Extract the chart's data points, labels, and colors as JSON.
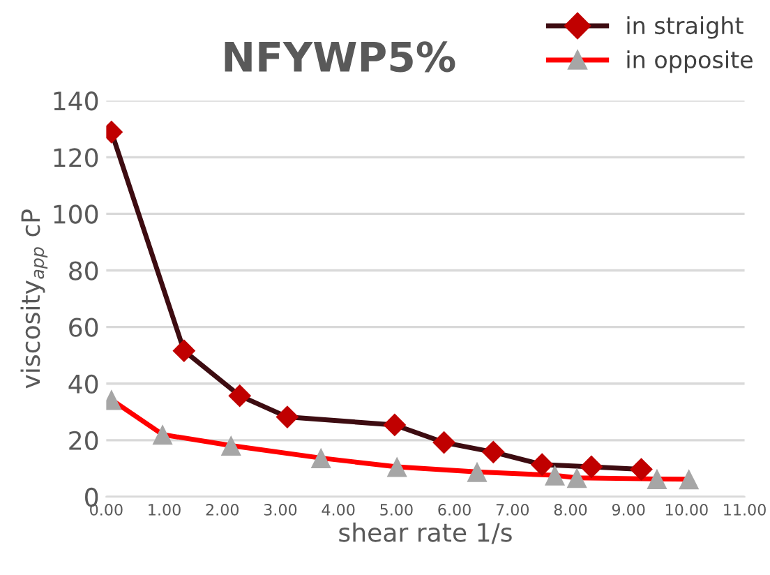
{
  "chart_data": {
    "type": "line",
    "title": "NFYWP5%",
    "xlabel": "shear rate 1/s",
    "ylabel": "viscosity$_{app}$ cP",
    "xlim": [
      0,
      11
    ],
    "xticks": [
      {
        "value": 0,
        "label": "0.00"
      },
      {
        "value": 1,
        "label": "1.00"
      },
      {
        "value": 2,
        "label": "2.00"
      },
      {
        "value": 3,
        "label": "3.00"
      },
      {
        "value": 4,
        "label": "4.00"
      },
      {
        "value": 5,
        "label": "5.00"
      },
      {
        "value": 6,
        "label": "6.00"
      },
      {
        "value": 7,
        "label": "7.00"
      },
      {
        "value": 8,
        "label": "8.00"
      },
      {
        "value": 9,
        "label": "9.00"
      },
      {
        "value": 10,
        "label": "10.00"
      },
      {
        "value": 11,
        "label": "11.00"
      }
    ],
    "ylim": [
      0,
      140
    ],
    "yticks": [
      0,
      20,
      40,
      60,
      80,
      100,
      120,
      140
    ],
    "grid": "y",
    "legend": "top right",
    "series": [
      {
        "name": "in straight",
        "color": "#3d0c11",
        "colors": [
          "#c00000",
          "#c00000",
          "#c00000",
          "#c00000",
          "#c00000",
          "#c00000",
          "#c00000",
          "#c00000",
          "#c00000",
          "#c00000"
        ],
        "marker": "diamond",
        "x": [
          0.09,
          1.34,
          2.3,
          3.12,
          4.97,
          5.82,
          6.67,
          7.51,
          8.36,
          9.22
        ],
        "values": [
          128.9,
          51.6,
          35.7,
          28.2,
          25.4,
          19.2,
          15.8,
          11.4,
          10.6,
          9.7
        ]
      },
      {
        "name": "in opposite",
        "color": "#ff0000",
        "colors": [
          "#a6a6a6",
          "#a6a6a6",
          "#a6a6a6",
          "#a6a6a6",
          "#a6a6a6",
          "#a6a6a6",
          "#a6a6a6",
          "#a6a6a6",
          "#a6a6a6",
          "#a6a6a6"
        ],
        "marker": "triangle",
        "x": [
          0.09,
          0.97,
          2.15,
          3.7,
          5.01,
          6.39,
          7.73,
          8.11,
          9.49,
          10.04
        ],
        "values": [
          34.3,
          22.0,
          18.1,
          13.7,
          10.6,
          8.8,
          7.6,
          6.7,
          6.3,
          6.2
        ]
      }
    ]
  }
}
